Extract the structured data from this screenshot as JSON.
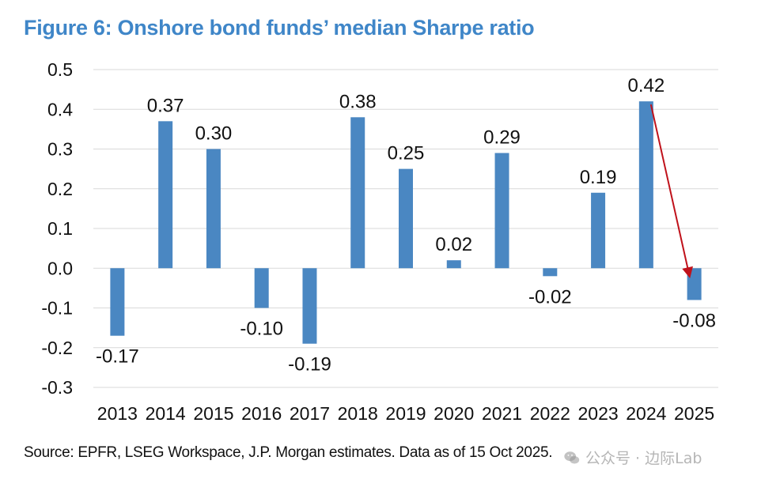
{
  "chart_data": {
    "type": "bar",
    "title": "Figure 6: Onshore bond funds’ median Sharpe ratio",
    "categories": [
      "2013",
      "2014",
      "2015",
      "2016",
      "2017",
      "2018",
      "2019",
      "2020",
      "2021",
      "2022",
      "2023",
      "2024",
      "2025"
    ],
    "values": [
      -0.17,
      0.37,
      0.3,
      -0.1,
      -0.19,
      0.38,
      0.25,
      0.02,
      0.29,
      -0.02,
      0.19,
      0.42,
      -0.08
    ],
    "value_labels": [
      "-0.17",
      "0.37",
      "0.30",
      "-0.10",
      "-0.19",
      "0.38",
      "0.25",
      "0.02",
      "0.29",
      "-0.02",
      "0.19",
      "0.42",
      "-0.08"
    ],
    "y_ticks": [
      0.5,
      0.4,
      0.3,
      0.2,
      0.1,
      0.0,
      -0.1,
      -0.2,
      -0.3
    ],
    "y_tick_labels": [
      "0.5",
      "0.4",
      "0.3",
      "0.2",
      "0.1",
      "0.0",
      "-0.1",
      "-0.2",
      "-0.3"
    ],
    "ylim": [
      -0.3,
      0.5
    ],
    "xlabel": "",
    "ylabel": "",
    "grid": true,
    "legend": "none",
    "annotation": {
      "type": "arrow",
      "from_category": "2024",
      "from_value": 0.42,
      "to_category": "2025",
      "to_value": 0.0
    },
    "colors": {
      "bar": "#4a87c2",
      "grid": "#d9d9d9",
      "arrow": "#c0121b",
      "title": "#3f86c8",
      "text": "#111111"
    }
  },
  "source": "Source: EPFR, LSEG Workspace, J.P. Morgan estimates. Data as of 15 Oct 2025.",
  "watermark": {
    "text": "公众号 · 边际Lab",
    "icon": "wechat-icon"
  }
}
